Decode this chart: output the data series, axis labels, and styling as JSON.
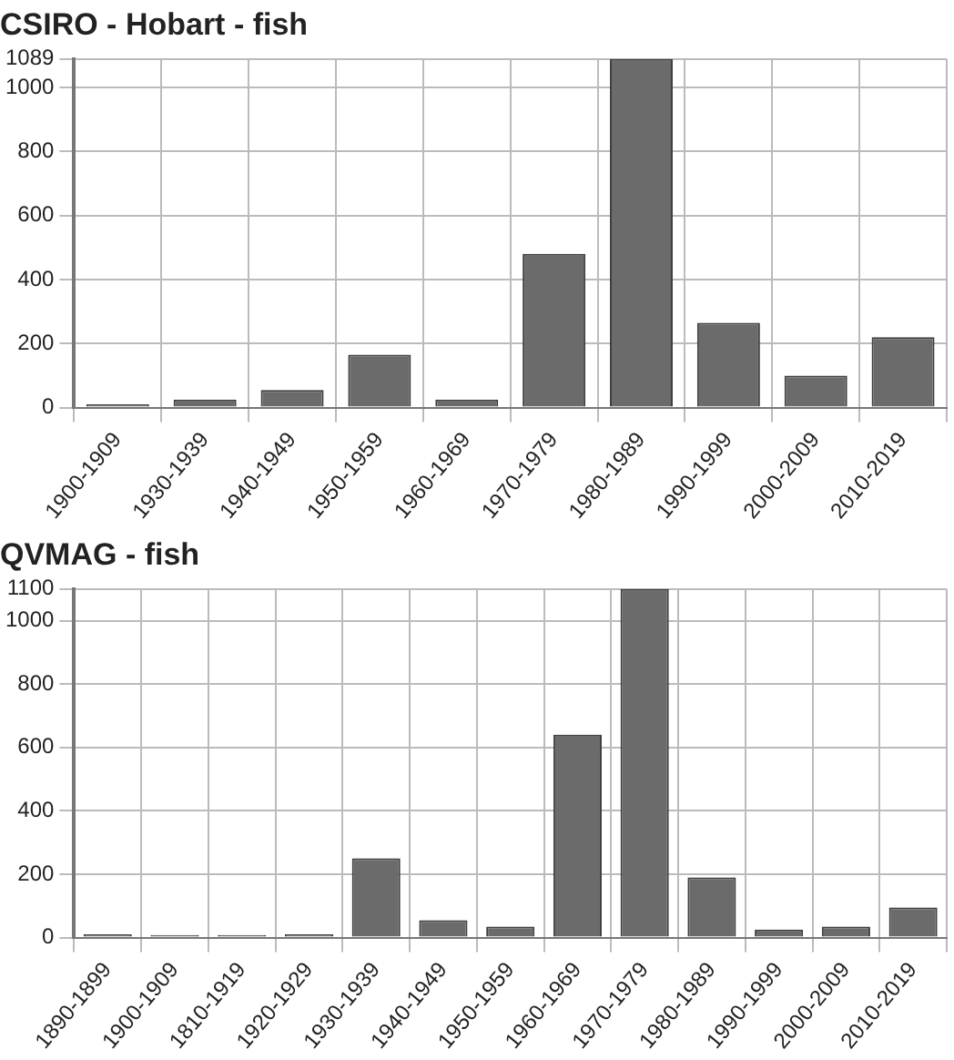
{
  "chart_data": [
    {
      "type": "bar",
      "title": "CSIRO - Hobart - fish",
      "categories": [
        "1900-1909",
        "1930-1939",
        "1940-1949",
        "1950-1959",
        "1960-1969",
        "1970-1979",
        "1980-1989",
        "1990-1999",
        "2000-2009",
        "2010-2019"
      ],
      "values": [
        10,
        25,
        55,
        165,
        25,
        480,
        1089,
        265,
        100,
        220
      ],
      "color": "#6b6b6b",
      "ylim": [
        0,
        1089
      ],
      "yticks": [
        0,
        200,
        400,
        600,
        800,
        1000,
        1089
      ],
      "grid": true
    },
    {
      "type": "bar",
      "title": "QVMAG - fish",
      "categories": [
        "1890-1899",
        "1900-1909",
        "1810-1919",
        "1920-1929",
        "1930-1939",
        "1940-1949",
        "1950-1959",
        "1960-1969",
        "1970-1979",
        "1980-1989",
        "1990-1999",
        "2000-2009",
        "2010-2019"
      ],
      "values": [
        10,
        8,
        8,
        10,
        250,
        55,
        35,
        640,
        1100,
        190,
        25,
        35,
        95
      ],
      "color": "#6b6b6b",
      "ylim": [
        0,
        1100
      ],
      "yticks": [
        0,
        200,
        400,
        600,
        800,
        1000,
        1100
      ],
      "grid": true
    }
  ]
}
